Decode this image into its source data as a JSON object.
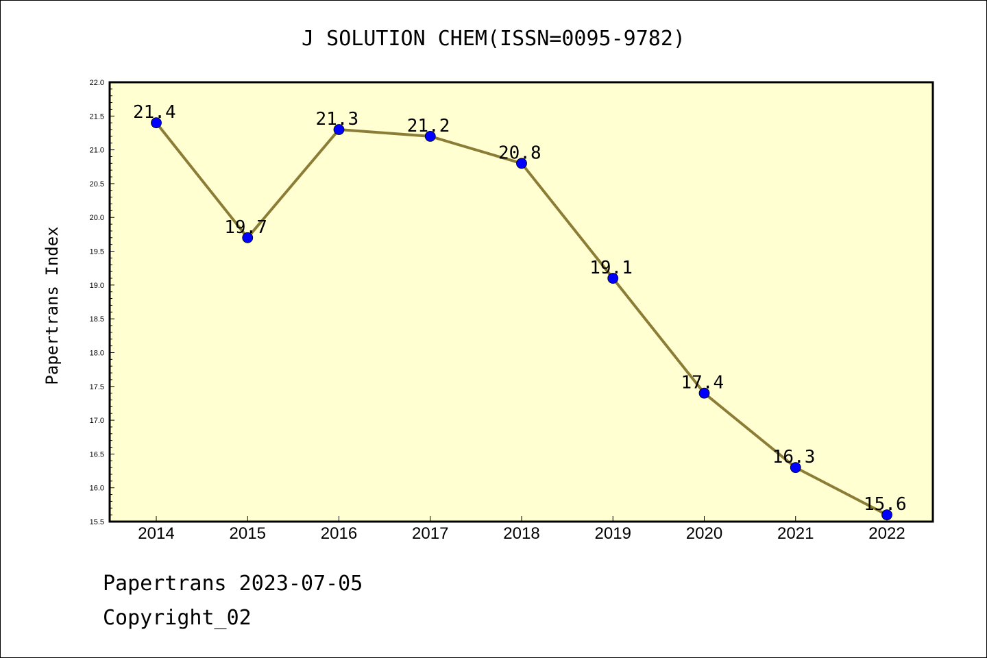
{
  "chart_data": {
    "type": "line",
    "title": "J SOLUTION CHEM(ISSN=0095-9782)",
    "xlabel": "",
    "ylabel": "Papertrans Index",
    "categories": [
      "2014",
      "2015",
      "2016",
      "2017",
      "2018",
      "2019",
      "2020",
      "2021",
      "2022"
    ],
    "series": [
      {
        "values": [
          21.4,
          19.7,
          21.3,
          21.2,
          20.8,
          19.1,
          17.4,
          16.3,
          15.6
        ],
        "labels": [
          "21.4",
          "19.7",
          "21.3",
          "21.2",
          "20.8",
          "19.1",
          "17.4",
          "16.3",
          "15.6"
        ]
      }
    ],
    "ylim": [
      15.5,
      22.0
    ],
    "yticks": [
      "15.5",
      "16.0",
      "16.5",
      "17.0",
      "17.5",
      "18.0",
      "18.5",
      "19.0",
      "19.5",
      "20.0",
      "20.5",
      "21.0",
      "21.5",
      "22.0"
    ],
    "grid": false,
    "colors": {
      "plot_background": "#ffffd2",
      "line": "#8b7d36",
      "marker": "#0000ff"
    }
  },
  "footer": {
    "line1": "Papertrans 2023-07-05",
    "line2": "Copyright_02"
  }
}
